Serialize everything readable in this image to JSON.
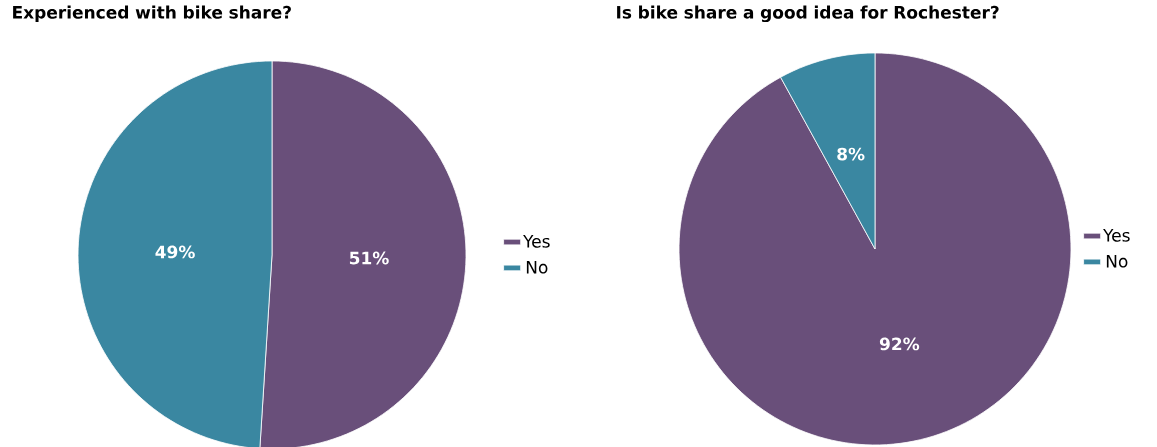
{
  "chart_data": [
    {
      "type": "pie",
      "title": "Experienced with bike share?",
      "categories": [
        "Yes",
        "No"
      ],
      "values": [
        51,
        49
      ],
      "colors": [
        "#694f7a",
        "#3a87a1"
      ],
      "value_labels": [
        "51%",
        "49%"
      ],
      "legend": "right"
    },
    {
      "type": "pie",
      "title": "Is bike share a good idea for Rochester?",
      "categories": [
        "Yes",
        "No"
      ],
      "values": [
        92,
        8
      ],
      "colors": [
        "#694f7a",
        "#3a87a1"
      ],
      "value_labels": [
        "92%",
        "8%"
      ],
      "legend": "right"
    }
  ]
}
